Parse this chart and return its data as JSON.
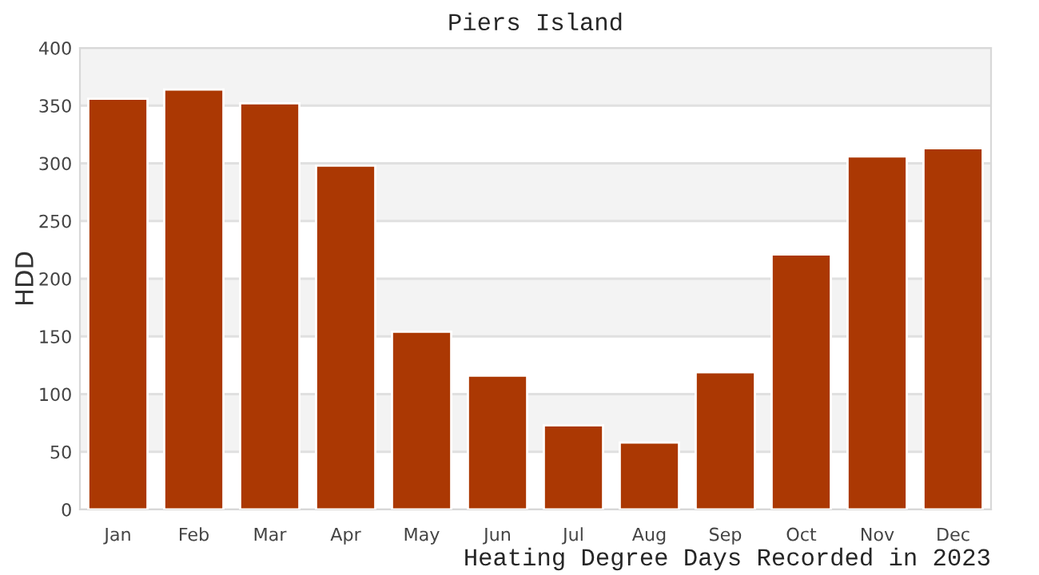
{
  "chart_data": {
    "type": "bar",
    "title": "Piers Island",
    "xlabel": "Heating Degree Days Recorded in 2023",
    "ylabel": "HDD",
    "categories": [
      "Jan",
      "Feb",
      "Mar",
      "Apr",
      "May",
      "Jun",
      "Jul",
      "Aug",
      "Sep",
      "Oct",
      "Nov",
      "Dec"
    ],
    "values": [
      356,
      364,
      352,
      298,
      154,
      116,
      73,
      58,
      119,
      221,
      306,
      313
    ],
    "color": "#ab3803",
    "ylim": [
      0,
      400
    ],
    "yticks": [
      0,
      50,
      100,
      150,
      200,
      250,
      300,
      350,
      400
    ],
    "grid": "y",
    "bands": [
      {
        "axis": "y",
        "from": 50,
        "to": 100,
        "color": "#f3f3f3"
      },
      {
        "axis": "y",
        "from": 150,
        "to": 200,
        "color": "#f3f3f3"
      },
      {
        "axis": "y",
        "from": 250,
        "to": 300,
        "color": "#f3f3f3"
      },
      {
        "axis": "y",
        "from": 350,
        "to": 400,
        "color": "#f3f3f3"
      }
    ]
  }
}
